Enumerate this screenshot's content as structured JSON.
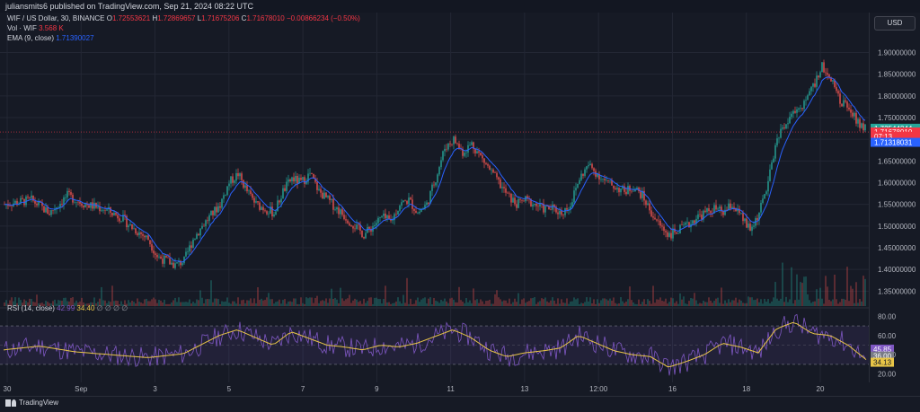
{
  "header": {
    "publisher": "juliansmits6 published on TradingView.com, Sep 21, 2024 08:22 UTC"
  },
  "legend": {
    "symbol": "WIF / US Dollar, 30, BINANCE",
    "o_label": "O",
    "o_value": "1.72553621",
    "h_label": "H",
    "h_value": "1.72869657",
    "l_label": "L",
    "l_value": "1.71675206",
    "c_label": "C",
    "c_value": "1.71678010",
    "change": "−0.00866234 (−0.50%)",
    "vol_label": "Vol · WIF",
    "vol_value": "3.568 K",
    "ema_label": "EMA (9, close)",
    "ema_value": "1.71390027",
    "rsi_label": "RSI (14, close)",
    "rsi_value": "42.99",
    "rsi_ma_value": "34.40",
    "rsi_extra": "∅ ∅ ∅ ∅"
  },
  "toolbar": {
    "currency": "USD"
  },
  "footer": {
    "brand": "TradingView"
  },
  "colors": {
    "up": "#26a69a",
    "down": "#ef5350",
    "ema": "#2962ff",
    "rsi": "#7e57c2",
    "rsi_ma": "#e8c547",
    "bg": "#161a25",
    "grid": "#232734"
  },
  "chart_data": [
    {
      "type": "candlestick",
      "ylim": [
        1.33,
        1.93
      ],
      "y_ticks": [
        "1.90000000",
        "1.85000000",
        "1.80000000",
        "1.75000000",
        "1.70000000",
        "1.65000000",
        "1.60000000",
        "1.55000000",
        "1.50000000",
        "1.45000000",
        "1.40000000",
        "1.35000000"
      ],
      "x_ticks": [
        "30",
        "Sep",
        "3",
        "5",
        "7",
        "9",
        "11",
        "13",
        "12:00",
        "16",
        "18",
        "20"
      ],
      "price_labels": [
        {
          "value": "1.72544244",
          "price": 1.7254,
          "color": "#26a69a"
        },
        {
          "value": "1.71678010",
          "price": 1.7168,
          "color": "#f23645"
        },
        {
          "value": "07:13",
          "price": 1.707,
          "color": "#f23645"
        },
        {
          "value": "1.71318031",
          "price": 1.693,
          "color": "#2962ff"
        }
      ],
      "series_close_path": [
        [
          0,
          1.55
        ],
        [
          3,
          1.56
        ],
        [
          5,
          1.53
        ],
        [
          7,
          1.57
        ],
        [
          9,
          1.55
        ],
        [
          11,
          1.54
        ],
        [
          13,
          1.52
        ],
        [
          14,
          1.5
        ],
        [
          16,
          1.47
        ],
        [
          17,
          1.43
        ],
        [
          19,
          1.41
        ],
        [
          20,
          1.42
        ],
        [
          21,
          1.47
        ],
        [
          22,
          1.5
        ],
        [
          24,
          1.55
        ],
        [
          25,
          1.6
        ],
        [
          26,
          1.62
        ],
        [
          27,
          1.58
        ],
        [
          28,
          1.55
        ],
        [
          30,
          1.53
        ],
        [
          31,
          1.58
        ],
        [
          32,
          1.61
        ],
        [
          33,
          1.6
        ],
        [
          34,
          1.62
        ],
        [
          35,
          1.58
        ],
        [
          36,
          1.56
        ],
        [
          37,
          1.54
        ],
        [
          38,
          1.52
        ],
        [
          39,
          1.5
        ],
        [
          40,
          1.48
        ],
        [
          42,
          1.52
        ],
        [
          43,
          1.51
        ],
        [
          44,
          1.55
        ],
        [
          45,
          1.56
        ],
        [
          46,
          1.53
        ],
        [
          47,
          1.55
        ],
        [
          48,
          1.61
        ],
        [
          49,
          1.68
        ],
        [
          50,
          1.7
        ],
        [
          51,
          1.67
        ],
        [
          52,
          1.69
        ],
        [
          53,
          1.66
        ],
        [
          54,
          1.63
        ],
        [
          55,
          1.6
        ],
        [
          56,
          1.57
        ],
        [
          57,
          1.55
        ],
        [
          58,
          1.56
        ],
        [
          59,
          1.55
        ],
        [
          60,
          1.54
        ],
        [
          61,
          1.54
        ],
        [
          62,
          1.53
        ],
        [
          63,
          1.55
        ],
        [
          64,
          1.61
        ],
        [
          65,
          1.64
        ],
        [
          66,
          1.62
        ],
        [
          67,
          1.6
        ],
        [
          68,
          1.59
        ],
        [
          69,
          1.58
        ],
        [
          70,
          1.59
        ],
        [
          71,
          1.57
        ],
        [
          72,
          1.53
        ],
        [
          73,
          1.5
        ],
        [
          74,
          1.48
        ],
        [
          75,
          1.49
        ],
        [
          76,
          1.5
        ],
        [
          77,
          1.52
        ],
        [
          78,
          1.53
        ],
        [
          79,
          1.54
        ],
        [
          80,
          1.53
        ],
        [
          81,
          1.55
        ],
        [
          82,
          1.52
        ],
        [
          83,
          1.49
        ],
        [
          84,
          1.53
        ],
        [
          85,
          1.6
        ],
        [
          86,
          1.7
        ],
        [
          87,
          1.74
        ],
        [
          88,
          1.76
        ],
        [
          89,
          1.78
        ],
        [
          90,
          1.82
        ],
        [
          91,
          1.87
        ],
        [
          92,
          1.84
        ],
        [
          93,
          1.79
        ],
        [
          94,
          1.77
        ],
        [
          95,
          1.74
        ],
        [
          96,
          1.72
        ]
      ],
      "n_steps": 96
    },
    {
      "type": "line",
      "name": "RSI (14, close)",
      "ylim": [
        15,
        85
      ],
      "y_ticks": [
        "80.00",
        "60.00",
        "40.00",
        "20.00"
      ],
      "bands": [
        70,
        30
      ],
      "rsi_labels": [
        {
          "value": "45.85",
          "level": 45.85
        },
        {
          "value": "36.00",
          "level": 38.6
        },
        {
          "value": "34.13",
          "level": 32.2
        }
      ],
      "rsi_ma_path": [
        [
          0,
          45
        ],
        [
          4,
          49
        ],
        [
          8,
          43
        ],
        [
          12,
          40
        ],
        [
          16,
          37
        ],
        [
          20,
          41
        ],
        [
          24,
          60
        ],
        [
          26,
          66
        ],
        [
          28,
          58
        ],
        [
          30,
          50
        ],
        [
          32,
          64
        ],
        [
          34,
          57
        ],
        [
          36,
          50
        ],
        [
          38,
          48
        ],
        [
          40,
          45
        ],
        [
          42,
          50
        ],
        [
          44,
          48
        ],
        [
          46,
          52
        ],
        [
          48,
          59
        ],
        [
          50,
          66
        ],
        [
          52,
          58
        ],
        [
          54,
          45
        ],
        [
          56,
          38
        ],
        [
          58,
          42
        ],
        [
          60,
          44
        ],
        [
          62,
          47
        ],
        [
          64,
          60
        ],
        [
          66,
          52
        ],
        [
          68,
          44
        ],
        [
          70,
          40
        ],
        [
          72,
          38
        ],
        [
          74,
          27
        ],
        [
          76,
          33
        ],
        [
          78,
          40
        ],
        [
          80,
          52
        ],
        [
          82,
          48
        ],
        [
          84,
          42
        ],
        [
          86,
          67
        ],
        [
          88,
          74
        ],
        [
          90,
          62
        ],
        [
          92,
          60
        ],
        [
          94,
          50
        ],
        [
          96,
          35
        ]
      ]
    }
  ]
}
